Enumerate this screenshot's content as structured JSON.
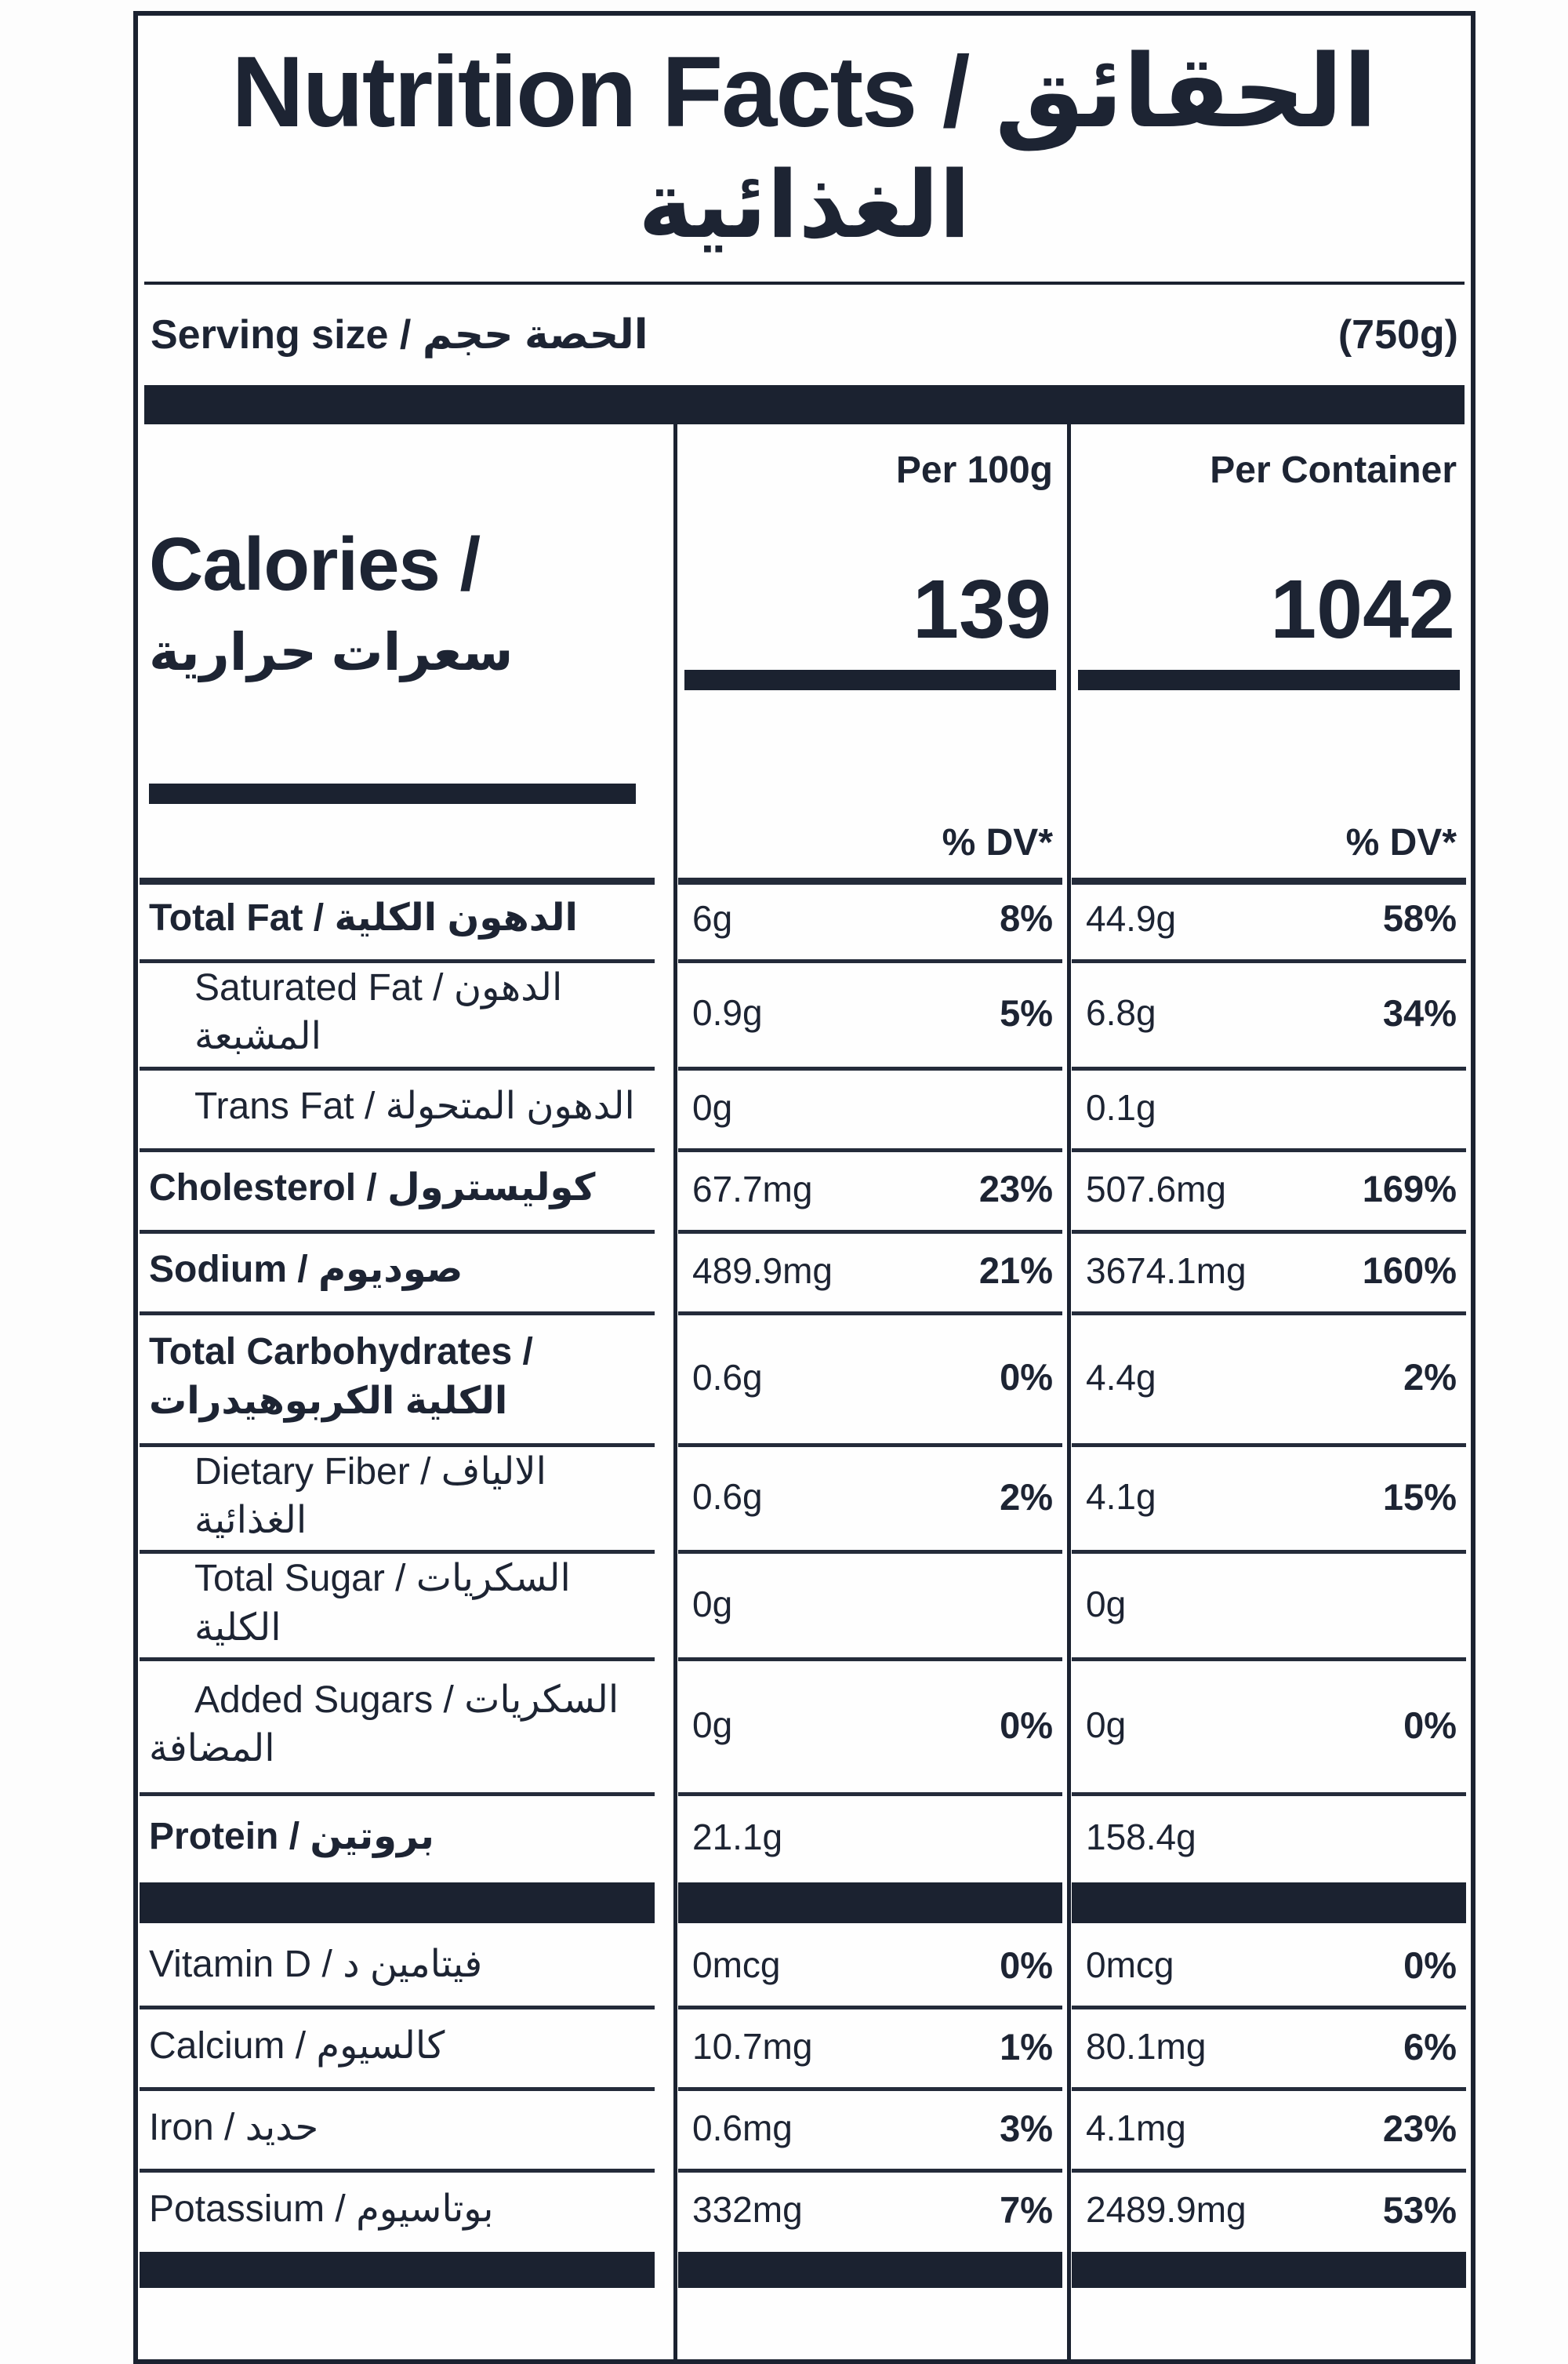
{
  "colors": {
    "ink": "#1d2433",
    "bar": "#1b2230",
    "line": "#242b3a",
    "paper": "#fefefe"
  },
  "title": {
    "line1": "Nutrition Facts / الحقائق",
    "line2": "الغذائية"
  },
  "serving": {
    "label": "Serving size / الحصة حجم",
    "value": "(750g)"
  },
  "columns": {
    "per100g": "Per 100g",
    "perContainer": "Per Container"
  },
  "calories": {
    "label_en": "Calories /",
    "label_ar": "سعرات حرارية",
    "per100g": "139",
    "perContainer": "1042"
  },
  "dv_header": {
    "per100g": "% DV*",
    "perContainer": "% DV*"
  },
  "rows": [
    {
      "key": "total-fat",
      "label": "Total Fat / الدهون الكلية",
      "label2": "",
      "bold": true,
      "indent": false,
      "sep": "thick",
      "a100": "6g",
      "d100": "8%",
      "aC": "44.9g",
      "dC": "58%",
      "variant": "std"
    },
    {
      "key": "saturated-fat",
      "label": "Saturated Fat / الدهون المشبعة",
      "label2": "",
      "bold": false,
      "indent": true,
      "sep": "thin",
      "a100": "0.9g",
      "d100": "5%",
      "aC": "6.8g",
      "dC": "34%",
      "variant": "std"
    },
    {
      "key": "trans-fat",
      "label": "Trans Fat / الدهون المتحولة",
      "label2": "",
      "bold": false,
      "indent": true,
      "sep": "thin",
      "a100": "0g",
      "d100": "",
      "aC": "0.1g",
      "dC": "",
      "variant": "std"
    },
    {
      "key": "cholesterol",
      "label": "Cholesterol / كوليسترول",
      "label2": "",
      "bold": true,
      "indent": false,
      "sep": "thin",
      "a100": "67.7mg",
      "d100": "23%",
      "aC": "507.6mg",
      "dC": "169%",
      "variant": "std"
    },
    {
      "key": "sodium",
      "label": "Sodium / صوديوم",
      "label2": "",
      "bold": true,
      "indent": false,
      "sep": "thin",
      "a100": "489.9mg",
      "d100": "21%",
      "aC": "3674.1mg",
      "dC": "160%",
      "variant": "std"
    },
    {
      "key": "total-carbohydrates",
      "label": "Total Carbohydrates /",
      "label2": "الكلية الكربوهيدرات",
      "bold": true,
      "indent": false,
      "sep": "thin",
      "a100": "0.6g",
      "d100": "0%",
      "aC": "4.4g",
      "dC": "2%",
      "variant": "carbs"
    },
    {
      "key": "dietary-fiber",
      "label": "Dietary Fiber / الالياف الغذائية",
      "label2": "",
      "bold": false,
      "indent": true,
      "sep": "thin",
      "a100": "0.6g",
      "d100": "2%",
      "aC": "4.1g",
      "dC": "15%",
      "variant": "std"
    },
    {
      "key": "total-sugar",
      "label": "Total Sugar / السكريات الكلية",
      "label2": "",
      "bold": false,
      "indent": true,
      "sep": "thin",
      "a100": "0g",
      "d100": "",
      "aC": "0g",
      "dC": "",
      "variant": "std"
    },
    {
      "key": "added-sugars",
      "label": "Added Sugars / السكريات",
      "label2": "المضافة",
      "bold": false,
      "indent": true,
      "sep": "thin",
      "a100": "0g",
      "d100": "0%",
      "aC": "0g",
      "dC": "0%",
      "variant": "added"
    },
    {
      "key": "protein",
      "label": "Protein / بروتين",
      "label2": "",
      "bold": true,
      "indent": false,
      "sep": "thin",
      "a100": "21.1g",
      "d100": "",
      "aC": "158.4g",
      "dC": "",
      "variant": "protein"
    }
  ],
  "vitamins": [
    {
      "key": "vitamin-d",
      "label": "Vitamin D / فيتامين د",
      "sep": "none",
      "a100": "0mcg",
      "d100": "0%",
      "aC": "0mcg",
      "dC": "0%"
    },
    {
      "key": "calcium",
      "label": "Calcium / كالسيوم",
      "sep": "thin",
      "a100": "10.7mg",
      "d100": "1%",
      "aC": "80.1mg",
      "dC": "6%"
    },
    {
      "key": "iron",
      "label": "Iron / حديد",
      "sep": "thin",
      "a100": "0.6mg",
      "d100": "3%",
      "aC": "4.1mg",
      "dC": "23%"
    },
    {
      "key": "potassium",
      "label": "Potassium / بوتاسيوم",
      "sep": "thin",
      "a100": "332mg",
      "d100": "7%",
      "aC": "2489.9mg",
      "dC": "53%"
    }
  ]
}
